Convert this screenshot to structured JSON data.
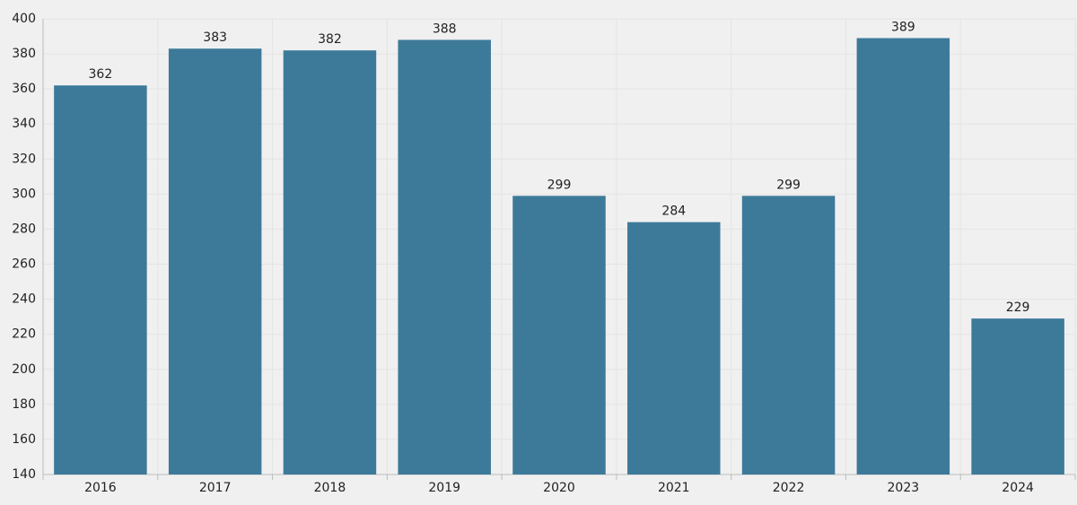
{
  "chart_data": {
    "type": "bar",
    "categories": [
      "2016",
      "2017",
      "2018",
      "2019",
      "2020",
      "2021",
      "2022",
      "2023",
      "2024"
    ],
    "values": [
      362,
      383,
      382,
      388,
      299,
      284,
      299,
      389,
      229
    ],
    "color": "#3d7a9a",
    "ylim": [
      140,
      400
    ],
    "yticks": [
      140,
      160,
      180,
      200,
      220,
      240,
      260,
      280,
      300,
      320,
      340,
      360,
      380,
      400
    ],
    "grid": true
  }
}
